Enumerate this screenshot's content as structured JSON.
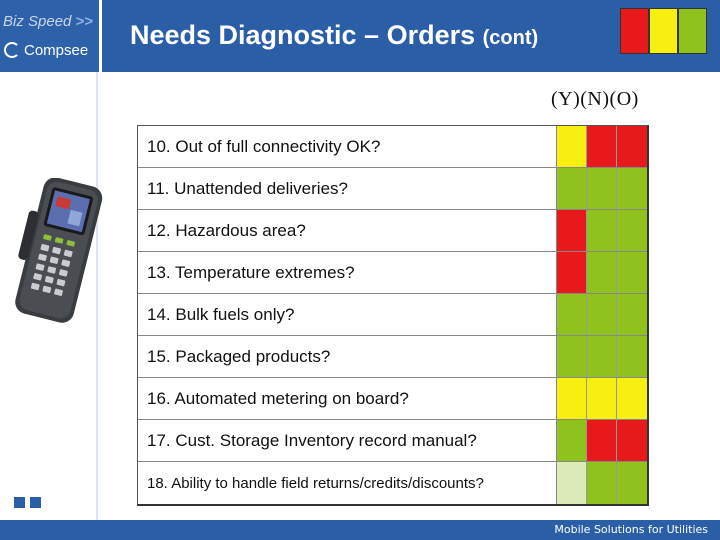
{
  "logo": {
    "brand_line": "Biz Speed",
    "brand_arrow": ">>",
    "company": "Compsee",
    "icon": "compsee-c-icon"
  },
  "header": {
    "title": "Needs Diagnostic – Orders",
    "title_suffix": "(cont)"
  },
  "legend": {
    "swatches": [
      "#e8191a",
      "#f6ef10",
      "#8fc21c"
    ]
  },
  "columns_label": "(Y)(N)(O)",
  "colors": {
    "red": "#e8191a",
    "yellow": "#f6ef10",
    "green": "#8fc21c",
    "pale_green": "#dcebb8",
    "brand_blue": "#2a5fa8"
  },
  "questions": [
    {
      "text": "10. Out of full connectivity OK?",
      "cells": [
        "yellow",
        "red",
        "red"
      ]
    },
    {
      "text": "11. Unattended deliveries?",
      "cells": [
        "green",
        "green",
        "green"
      ]
    },
    {
      "text": "12. Hazardous area?",
      "cells": [
        "red",
        "green",
        "green"
      ]
    },
    {
      "text": "13. Temperature extremes?",
      "cells": [
        "red",
        "green",
        "green"
      ]
    },
    {
      "text": "14. Bulk fuels only?",
      "cells": [
        "green",
        "green",
        "green"
      ]
    },
    {
      "text": "15. Packaged products?",
      "cells": [
        "green",
        "green",
        "green"
      ]
    },
    {
      "text": "16. Automated metering on board?",
      "cells": [
        "yellow",
        "yellow",
        "yellow"
      ]
    },
    {
      "text": "17. Cust. Storage Inventory record manual?",
      "cells": [
        "green",
        "red",
        "red"
      ]
    },
    {
      "text": "18. Ability to handle field returns/credits/discounts?",
      "cells": [
        "pale_green",
        "green",
        "green"
      ]
    }
  ],
  "footer": {
    "text": "Mobile Solutions for Utilities"
  }
}
